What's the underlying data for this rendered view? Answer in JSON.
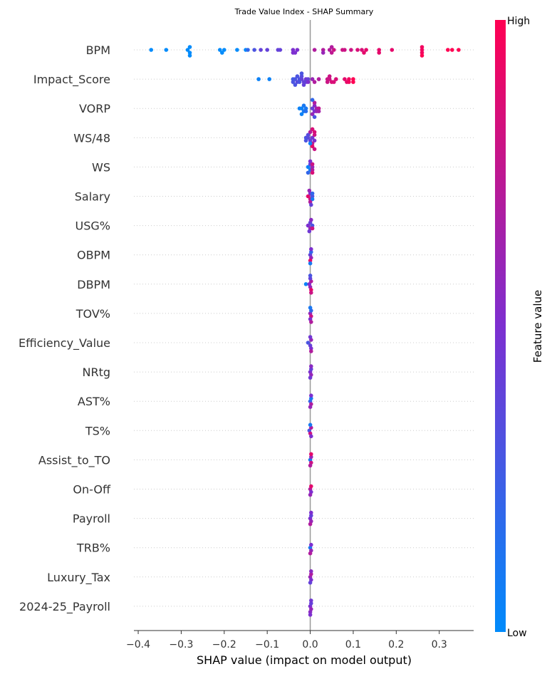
{
  "chart_data": {
    "type": "scatter",
    "title": "Trade Value Index - SHAP Summary",
    "xlabel": "SHAP value (impact on model output)",
    "xlim": [
      -0.41,
      0.38
    ],
    "xticks": [
      -0.4,
      -0.3,
      -0.2,
      -0.1,
      0.0,
      0.1,
      0.2,
      0.3
    ],
    "xtick_labels": [
      "−0.4",
      "−0.3",
      "−0.2",
      "−0.1",
      "0.0",
      "0.1",
      "0.2",
      "0.3"
    ],
    "colorbar": {
      "title": "Feature value",
      "high_label": "High",
      "low_label": "Low",
      "low_color": "#008bfb",
      "mid_color": "#7d2fd0",
      "high_color": "#ff0052"
    },
    "grid": false,
    "features": [
      {
        "name": "BPM",
        "points": [
          [
            -0.37,
            0.0
          ],
          [
            -0.335,
            0.0
          ],
          [
            -0.285,
            0.0
          ],
          [
            -0.28,
            0.0
          ],
          [
            -0.28,
            0.0
          ],
          [
            -0.21,
            0.0
          ],
          [
            -0.2,
            0.0
          ],
          [
            -0.17,
            0.0
          ],
          [
            -0.15,
            0.0
          ],
          [
            -0.13,
            0.3
          ],
          [
            -0.115,
            0.4
          ],
          [
            -0.1,
            0.4
          ],
          [
            -0.075,
            0.4
          ],
          [
            -0.07,
            0.4
          ],
          [
            -0.04,
            0.5
          ],
          [
            -0.03,
            0.5
          ],
          [
            -0.035,
            0.5
          ],
          [
            0.01,
            0.7
          ],
          [
            0.03,
            0.7
          ],
          [
            0.045,
            0.7
          ],
          [
            0.05,
            0.75
          ],
          [
            0.055,
            0.8
          ],
          [
            0.075,
            0.8
          ],
          [
            0.08,
            0.8
          ],
          [
            0.11,
            0.85
          ],
          [
            0.12,
            0.85
          ],
          [
            0.13,
            0.9
          ],
          [
            0.16,
            0.9
          ],
          [
            0.19,
            0.9
          ],
          [
            0.26,
            0.95
          ],
          [
            0.26,
            0.95
          ],
          [
            0.26,
            0.95
          ],
          [
            0.32,
            1.0
          ],
          [
            0.33,
            1.0
          ],
          [
            0.345,
            1.0
          ],
          [
            -0.28,
            0.0
          ],
          [
            -0.205,
            0.0
          ],
          [
            -0.145,
            0.2
          ],
          [
            -0.04,
            0.5
          ],
          [
            0.03,
            0.6
          ],
          [
            0.05,
            0.7
          ],
          [
            0.095,
            0.8
          ],
          [
            0.125,
            0.9
          ],
          [
            0.16,
            0.9
          ],
          [
            0.26,
            1.0
          ]
        ]
      },
      {
        "name": "Impact_Score",
        "points": [
          [
            -0.12,
            0.05
          ],
          [
            -0.095,
            0.05
          ],
          [
            -0.04,
            0.25
          ],
          [
            -0.035,
            0.3
          ],
          [
            -0.03,
            0.35
          ],
          [
            -0.025,
            0.3
          ],
          [
            -0.02,
            0.4
          ],
          [
            -0.015,
            0.4
          ],
          [
            -0.01,
            0.45
          ],
          [
            -0.005,
            0.4
          ],
          [
            -0.03,
            0.3
          ],
          [
            -0.025,
            0.3
          ],
          [
            -0.02,
            0.35
          ],
          [
            -0.015,
            0.4
          ],
          [
            -0.035,
            0.3
          ],
          [
            -0.04,
            0.3
          ],
          [
            -0.01,
            0.4
          ],
          [
            -0.02,
            0.3
          ],
          [
            -0.005,
            0.5
          ],
          [
            0.005,
            0.6
          ],
          [
            0.01,
            0.7
          ],
          [
            0.02,
            0.7
          ],
          [
            0.04,
            0.8
          ],
          [
            0.045,
            0.8
          ],
          [
            0.05,
            0.85
          ],
          [
            0.06,
            0.85
          ],
          [
            0.08,
            0.9
          ],
          [
            0.085,
            0.9
          ],
          [
            0.09,
            0.95
          ],
          [
            0.1,
            1.0
          ],
          [
            0.1,
            1.0
          ],
          [
            0.045,
            0.8
          ],
          [
            0.055,
            0.85
          ],
          [
            0.09,
            0.95
          ],
          [
            0.04,
            0.8
          ]
        ]
      },
      {
        "name": "VORP",
        "points": [
          [
            -0.025,
            0.05
          ],
          [
            -0.02,
            0.05
          ],
          [
            -0.015,
            0.1
          ],
          [
            -0.01,
            0.1
          ],
          [
            -0.015,
            0.1
          ],
          [
            -0.02,
            0.05
          ],
          [
            -0.01,
            0.15
          ],
          [
            0.005,
            0.4
          ],
          [
            0.01,
            0.5
          ],
          [
            0.01,
            0.55
          ],
          [
            0.015,
            0.65
          ],
          [
            0.02,
            0.75
          ],
          [
            0.005,
            0.6
          ],
          [
            0.01,
            0.7
          ],
          [
            0.015,
            0.6
          ],
          [
            0.01,
            0.3
          ],
          [
            0.005,
            0.2
          ],
          [
            0.02,
            0.65
          ]
        ]
      },
      {
        "name": "WS/48",
        "points": [
          [
            -0.01,
            0.3
          ],
          [
            -0.005,
            0.35
          ],
          [
            0.0,
            0.4
          ],
          [
            0.005,
            0.45
          ],
          [
            0.01,
            0.5
          ],
          [
            0.01,
            0.8
          ],
          [
            0.005,
            0.75
          ],
          [
            0.01,
            0.85
          ],
          [
            0.005,
            0.9
          ],
          [
            -0.005,
            0.35
          ],
          [
            -0.01,
            0.3
          ],
          [
            0.0,
            0.05
          ],
          [
            0.005,
            0.85
          ],
          [
            0.01,
            0.8
          ],
          [
            0.0,
            0.7
          ]
        ]
      },
      {
        "name": "WS",
        "points": [
          [
            -0.005,
            0.05
          ],
          [
            0.0,
            0.1
          ],
          [
            0.005,
            0.6
          ],
          [
            0.005,
            0.7
          ],
          [
            0.0,
            0.4
          ],
          [
            -0.005,
            0.2
          ],
          [
            0.005,
            0.8
          ],
          [
            0.005,
            0.85
          ],
          [
            0.0,
            0.5
          ]
        ]
      },
      {
        "name": "Salary",
        "points": [
          [
            -0.005,
            0.9
          ],
          [
            0.0,
            0.8
          ],
          [
            0.0,
            0.5
          ],
          [
            0.005,
            0.3
          ],
          [
            0.005,
            0.1
          ],
          [
            0.0,
            0.7
          ],
          [
            0.005,
            0.2
          ],
          [
            -0.002,
            0.6
          ],
          [
            0.002,
            0.4
          ]
        ]
      },
      {
        "name": "USG%",
        "points": [
          [
            -0.005,
            0.5
          ],
          [
            0.0,
            0.6
          ],
          [
            0.0,
            0.4
          ],
          [
            0.005,
            0.3
          ],
          [
            0.005,
            0.8
          ],
          [
            -0.002,
            0.45
          ],
          [
            0.002,
            0.55
          ]
        ]
      },
      {
        "name": "OBPM",
        "points": [
          [
            0.0,
            0.4
          ],
          [
            0.002,
            0.6
          ],
          [
            0.002,
            0.2
          ],
          [
            0.0,
            0.9
          ],
          [
            0.002,
            0.5
          ],
          [
            0.0,
            0.1
          ]
        ]
      },
      {
        "name": "DBPM",
        "points": [
          [
            -0.01,
            0.05
          ],
          [
            -0.002,
            0.5
          ],
          [
            0.0,
            0.6
          ],
          [
            0.002,
            0.7
          ],
          [
            0.002,
            0.9
          ],
          [
            0.0,
            0.4
          ],
          [
            0.002,
            0.8
          ],
          [
            0.0,
            0.3
          ]
        ]
      },
      {
        "name": "TOV%",
        "points": [
          [
            0.0,
            0.6
          ],
          [
            0.002,
            0.8
          ],
          [
            0.002,
            0.2
          ],
          [
            0.0,
            0.5
          ],
          [
            0.0,
            0.1
          ],
          [
            0.002,
            0.7
          ]
        ]
      },
      {
        "name": "Efficiency_Value",
        "points": [
          [
            -0.005,
            0.3
          ],
          [
            0.0,
            0.4
          ],
          [
            0.002,
            0.6
          ],
          [
            0.002,
            0.5
          ],
          [
            0.0,
            0.45
          ],
          [
            0.002,
            0.7
          ]
        ]
      },
      {
        "name": "NRtg",
        "points": [
          [
            0.0,
            0.5
          ],
          [
            0.002,
            0.6
          ],
          [
            0.002,
            0.4
          ],
          [
            0.0,
            0.45
          ],
          [
            0.002,
            0.55
          ]
        ]
      },
      {
        "name": "AST%",
        "points": [
          [
            0.0,
            0.2
          ],
          [
            0.002,
            0.7
          ],
          [
            0.002,
            0.1
          ],
          [
            0.0,
            0.6
          ],
          [
            0.002,
            0.5
          ]
        ]
      },
      {
        "name": "TS%",
        "points": [
          [
            -0.002,
            0.3
          ],
          [
            0.0,
            0.8
          ],
          [
            0.002,
            0.7
          ],
          [
            0.002,
            0.5
          ],
          [
            0.0,
            0.1
          ]
        ]
      },
      {
        "name": "Assist_to_TO",
        "points": [
          [
            0.0,
            0.1
          ],
          [
            0.002,
            0.8
          ],
          [
            0.002,
            0.6
          ],
          [
            0.0,
            0.7
          ],
          [
            0.002,
            0.9
          ]
        ]
      },
      {
        "name": "On-Off",
        "points": [
          [
            0.0,
            0.7
          ],
          [
            0.002,
            0.5
          ],
          [
            0.002,
            0.9
          ],
          [
            0.0,
            0.6
          ]
        ]
      },
      {
        "name": "Payroll",
        "points": [
          [
            0.0,
            0.5
          ],
          [
            0.002,
            0.6
          ],
          [
            0.002,
            0.4
          ],
          [
            0.0,
            0.7
          ],
          [
            0.002,
            0.5
          ]
        ]
      },
      {
        "name": "TRB%",
        "points": [
          [
            0.0,
            0.1
          ],
          [
            0.002,
            0.6
          ],
          [
            0.002,
            0.5
          ],
          [
            0.0,
            0.7
          ]
        ]
      },
      {
        "name": "Luxury_Tax",
        "points": [
          [
            0.0,
            0.6
          ],
          [
            0.002,
            0.5
          ],
          [
            0.002,
            0.7
          ],
          [
            0.0,
            0.4
          ],
          [
            0.002,
            0.55
          ]
        ]
      },
      {
        "name": "2024-25_Payroll",
        "points": [
          [
            0.0,
            0.5
          ],
          [
            0.002,
            0.6
          ],
          [
            0.002,
            0.4
          ],
          [
            0.0,
            0.55
          ],
          [
            0.002,
            0.45
          ],
          [
            0.0,
            0.5
          ]
        ]
      }
    ]
  }
}
